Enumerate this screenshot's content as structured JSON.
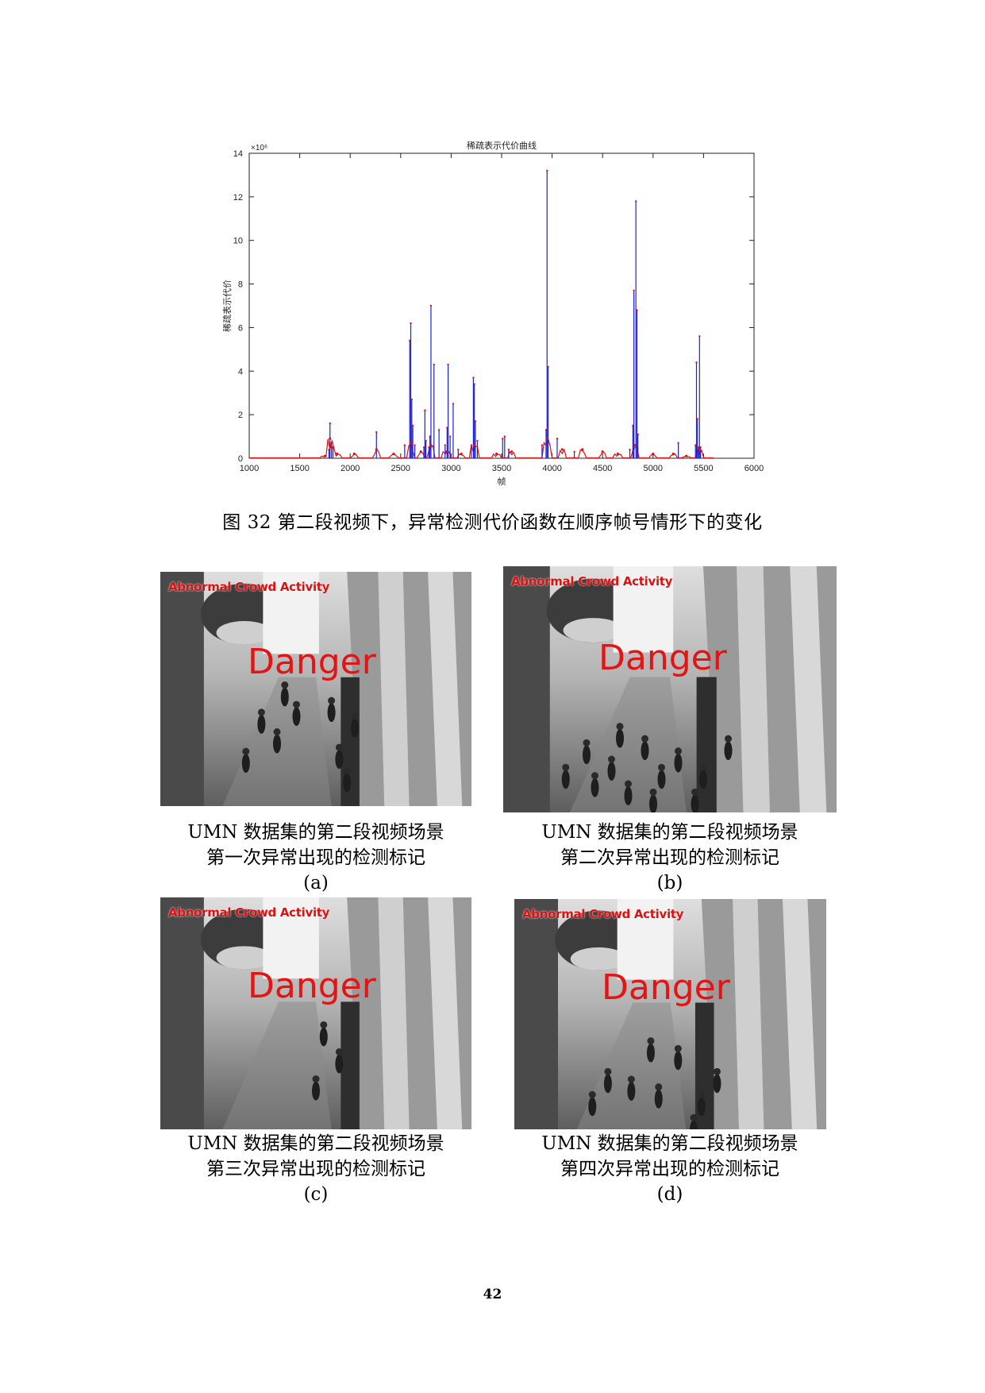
{
  "chart_data": {
    "type": "line",
    "title": "稀疏表示代价曲线",
    "xlabel": "帧",
    "ylabel": "稀疏表示代价",
    "y_multiplier_label": "×10⁶",
    "xlim": [
      1000,
      6000
    ],
    "ylim": [
      0,
      14
    ],
    "x_ticks": [
      1000,
      1500,
      2000,
      2500,
      3000,
      3500,
      4000,
      4500,
      5000,
      5500,
      6000
    ],
    "y_ticks": [
      0,
      2,
      4,
      6,
      8,
      10,
      12,
      14
    ],
    "series": [
      {
        "color": "#1f1fd6",
        "x": [
          1790,
          1800,
          1815,
          1830,
          2260,
          2540,
          2590,
          2600,
          2610,
          2620,
          2640,
          2730,
          2740,
          2750,
          2780,
          2790,
          2800,
          2830,
          2880,
          2940,
          2960,
          2970,
          2990,
          3020,
          3070,
          3200,
          3220,
          3230,
          3240,
          3260,
          3510,
          3530,
          3570,
          3900,
          3940,
          3950,
          3960,
          4050,
          4220,
          4770,
          4800,
          4810,
          4830,
          4840,
          4850,
          5250,
          5420,
          5430,
          5440,
          5450,
          5460,
          5470
        ],
        "values": [
          0.4,
          1.6,
          0.7,
          0.5,
          1.2,
          0.6,
          5.4,
          6.2,
          2.7,
          1.5,
          0.6,
          0.5,
          2.2,
          0.8,
          0.5,
          1.0,
          7.0,
          4.3,
          1.3,
          0.6,
          1.4,
          4.3,
          1.0,
          2.5,
          0.4,
          0.6,
          3.7,
          3.4,
          1.7,
          0.8,
          0.9,
          1.0,
          0.4,
          0.6,
          1.3,
          13.2,
          4.2,
          0.9,
          0.3,
          0.4,
          1.5,
          7.7,
          11.8,
          6.8,
          1.1,
          0.7,
          0.6,
          4.4,
          1.8,
          0.5,
          5.6,
          0.5
        ]
      },
      {
        "color": "#e01010",
        "x": [
          1750,
          1800,
          1820,
          1870,
          2040,
          2260,
          2430,
          2600,
          2700,
          2800,
          2950,
          3100,
          3230,
          3450,
          3600,
          3950,
          4100,
          4300,
          4500,
          4650,
          4820,
          5000,
          5200,
          5330,
          5460
        ],
        "values": [
          0.1,
          0.9,
          0.5,
          0.2,
          0.2,
          0.4,
          0.2,
          0.7,
          0.3,
          0.6,
          0.3,
          0.2,
          0.6,
          0.2,
          0.3,
          0.9,
          0.4,
          0.4,
          0.3,
          0.2,
          0.6,
          0.2,
          0.2,
          0.1,
          0.4
        ]
      }
    ]
  },
  "figure_caption": "图 32 第二段视频下，异常检测代价函数在顺序帧号情形下的变化",
  "overlay": {
    "top_label": "Abnormal Crowd Activity",
    "big_label": "Danger"
  },
  "panels": [
    {
      "line1": "UMN 数据集的第二段视频场景",
      "line2": "第一次异常出现的检测标记",
      "label": "(a)"
    },
    {
      "line1": "UMN 数据集的第二段视频场景",
      "line2": "第二次异常出现的检测标记",
      "label": "(b)"
    },
    {
      "line1": "UMN 数据集的第二段视频场景",
      "line2": "第三次异常出现的检测标记",
      "label": "(c)"
    },
    {
      "line1": "UMN 数据集的第二段视频场景",
      "line2": "第四次异常出现的检测标记",
      "label": "(d)"
    }
  ],
  "page_number": "42"
}
